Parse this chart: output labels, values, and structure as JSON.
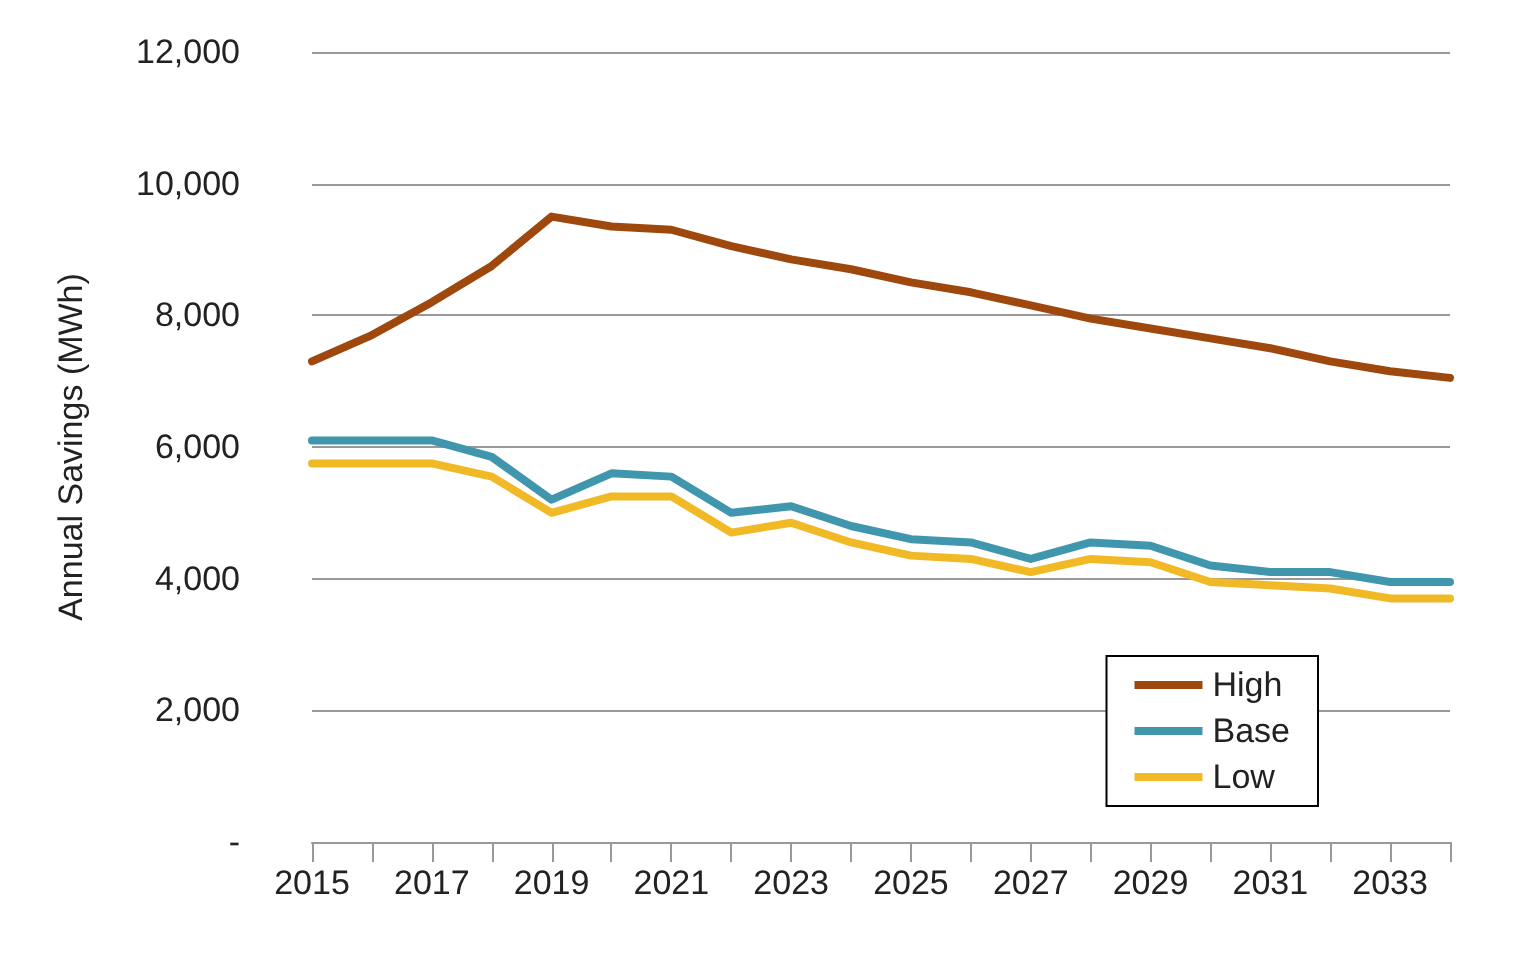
{
  "chart_data": {
    "type": "line",
    "ylabel": "Annual Savings (MWh)",
    "categories": [
      "2015",
      null,
      "2017",
      null,
      "2019",
      null,
      "2021",
      null,
      "2023",
      null,
      "2025",
      null,
      "2027",
      null,
      "2029",
      null,
      "2031",
      null,
      "2033",
      null
    ],
    "series": [
      {
        "name": "High",
        "color": "#9e480e",
        "values": [
          7300,
          7700,
          8200,
          8750,
          9500,
          9350,
          9300,
          9050,
          8850,
          8700,
          8500,
          8350,
          8150,
          7950,
          7800,
          7650,
          7500,
          7300,
          7150,
          7050
        ]
      },
      {
        "name": "Base",
        "color": "#4097ad",
        "values": [
          6100,
          6100,
          6100,
          5850,
          5200,
          5600,
          5550,
          5000,
          5100,
          4800,
          4600,
          4550,
          4300,
          4550,
          4500,
          4200,
          4100,
          4100,
          3950,
          3950
        ]
      },
      {
        "name": "Low",
        "color": "#f2b927",
        "values": [
          5750,
          5750,
          5750,
          5550,
          5000,
          5250,
          5250,
          4700,
          4850,
          4550,
          4350,
          4300,
          4100,
          4300,
          4250,
          3950,
          3900,
          3850,
          3700,
          3700
        ]
      }
    ],
    "ylim": [
      0,
      12000
    ],
    "yticks": [
      {
        "value": 0,
        "label": "-"
      },
      {
        "value": 2000,
        "label": "2,000"
      },
      {
        "value": 4000,
        "label": "4,000"
      },
      {
        "value": 6000,
        "label": "6,000"
      },
      {
        "value": 8000,
        "label": "8,000"
      },
      {
        "value": 10000,
        "label": "10,000"
      },
      {
        "value": 12000,
        "label": "12,000"
      }
    ],
    "grid": "y",
    "legend": "bottom right",
    "marker": "none",
    "line_style": "solid"
  }
}
